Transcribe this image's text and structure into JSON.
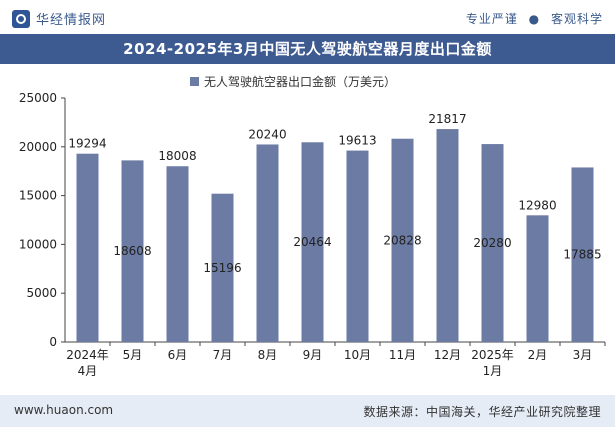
{
  "header": {
    "brand": "华经情报网",
    "slogan_left": "专业严谨",
    "slogan_dot": "●",
    "slogan_right": "客观科学"
  },
  "title": "2024-2025年3月中国无人驾驶航空器月度出口金额",
  "colors": {
    "bar": "#6b7ba4",
    "title_bg": "#3d5a91",
    "footer_bg": "#e6ecf5"
  },
  "chart_data": {
    "type": "bar",
    "categories": [
      "2024年\n4月",
      "5月",
      "6月",
      "7月",
      "8月",
      "9月",
      "10月",
      "11月",
      "12月",
      "2025年\n1月",
      "2月",
      "3月"
    ],
    "series": [
      {
        "name": "无人驾驶航空器出口金额（万美元）",
        "values": [
          19294,
          18608,
          18008,
          15196,
          20240,
          20464,
          19613,
          20828,
          21817,
          20280,
          12980,
          17885
        ]
      }
    ],
    "ylim": [
      0,
      25000
    ],
    "yticks": [
      0,
      5000,
      10000,
      15000,
      20000,
      25000
    ],
    "grid": false,
    "legend_position": "top-center",
    "label_placement": [
      "top",
      "inside",
      "top",
      "inside",
      "top",
      "inside",
      "top",
      "inside",
      "top",
      "inside",
      "top",
      "inside"
    ]
  },
  "footer": {
    "site": "www.huaon.com",
    "source": "数据来源：中国海关，华经产业研究院整理"
  }
}
